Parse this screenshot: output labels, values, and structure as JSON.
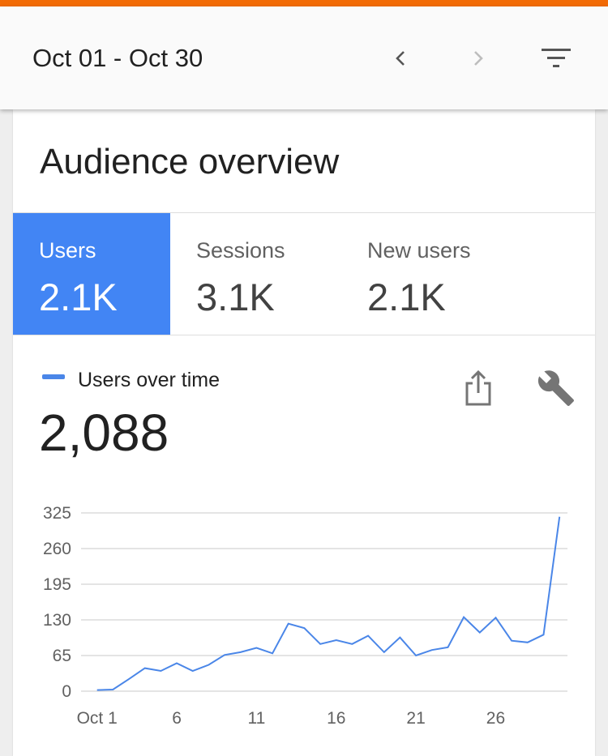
{
  "header": {
    "date_range": "Oct 01 - Oct 30",
    "prev_icon": "chevron-left-icon",
    "next_icon": "chevron-right-icon",
    "filter_icon": "filter-icon"
  },
  "card": {
    "title": "Audience overview",
    "metrics": [
      {
        "label": "Users",
        "value": "2.1K",
        "active": true
      },
      {
        "label": "Sessions",
        "value": "3.1K",
        "active": false
      },
      {
        "label": "New users",
        "value": "2.1K",
        "active": false
      }
    ],
    "chart_header": {
      "legend_label": "Users over time",
      "total": "2,088",
      "share_icon": "share-icon",
      "settings_icon": "wrench-icon"
    }
  },
  "colors": {
    "accent": "#f26b05",
    "active_tab": "#4285f4",
    "series": "#4a86e8"
  },
  "chart_data": {
    "type": "line",
    "series": [
      {
        "values": [
          2,
          3,
          22,
          42,
          37,
          51,
          37,
          48,
          66,
          71,
          79,
          69,
          123,
          115,
          86,
          93,
          86,
          101,
          71,
          98,
          65,
          75,
          80,
          135,
          107,
          134,
          92,
          89,
          103,
          318
        ]
      }
    ],
    "x": [
      1,
      2,
      3,
      4,
      5,
      6,
      7,
      8,
      9,
      10,
      11,
      12,
      13,
      14,
      15,
      16,
      17,
      18,
      19,
      20,
      21,
      22,
      23,
      24,
      25,
      26,
      27,
      28,
      29,
      30
    ],
    "x_tick_labels": [
      "Oct 1",
      "6",
      "11",
      "16",
      "21",
      "26"
    ],
    "x_tick_values": [
      1,
      6,
      11,
      16,
      21,
      26
    ],
    "y_ticks": [
      0,
      65,
      130,
      195,
      260,
      325
    ],
    "ylim": [
      0,
      325
    ],
    "grid": true
  }
}
